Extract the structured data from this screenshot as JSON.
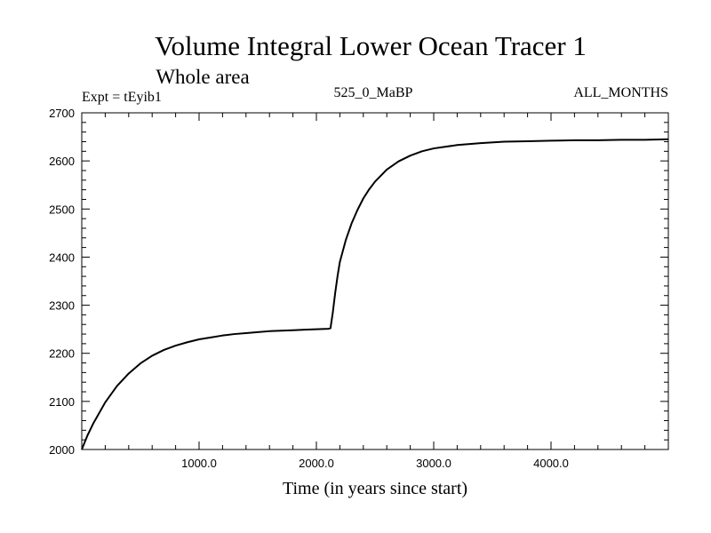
{
  "chart_data": {
    "type": "line",
    "title": "Volume Integral Lower Ocean Tracer 1",
    "subtitle": "Whole area",
    "annotations": {
      "left": "Expt = tEyib1",
      "center": "525_0_MaBP",
      "right": "ALL_MONTHS"
    },
    "xlabel": "Time (in years since start)",
    "ylabel": "",
    "xlim": [
      0,
      5000
    ],
    "ylim": [
      2000,
      2700
    ],
    "x_ticks": [
      {
        "value": 1000,
        "label": "1000.0"
      },
      {
        "value": 2000,
        "label": "2000.0"
      },
      {
        "value": 3000,
        "label": "3000.0"
      },
      {
        "value": 4000,
        "label": "4000.0"
      }
    ],
    "y_ticks": [
      {
        "value": 2000,
        "label": "2000"
      },
      {
        "value": 2100,
        "label": "2100"
      },
      {
        "value": 2200,
        "label": "2200"
      },
      {
        "value": 2300,
        "label": "2300"
      },
      {
        "value": 2400,
        "label": "2400"
      },
      {
        "value": 2500,
        "label": "2500"
      },
      {
        "value": 2600,
        "label": "2600"
      },
      {
        "value": 2700,
        "label": "2700"
      }
    ],
    "series": [
      {
        "name": "Tracer 1",
        "color": "#000000",
        "x": [
          0,
          50,
          100,
          200,
          300,
          400,
          500,
          600,
          700,
          800,
          900,
          1000,
          1100,
          1200,
          1300,
          1400,
          1500,
          1600,
          1700,
          1800,
          1900,
          2000,
          2100,
          2120,
          2140,
          2160,
          2180,
          2200,
          2250,
          2300,
          2350,
          2400,
          2450,
          2500,
          2600,
          2700,
          2800,
          2900,
          3000,
          3200,
          3400,
          3600,
          3800,
          4000,
          4200,
          4400,
          4600,
          4800,
          5000
        ],
        "y": [
          2000,
          2030,
          2055,
          2098,
          2132,
          2158,
          2179,
          2195,
          2207,
          2216,
          2223,
          2229,
          2233,
          2237,
          2240,
          2242,
          2244,
          2246,
          2247,
          2248,
          2249,
          2250,
          2251,
          2252,
          2285,
          2325,
          2360,
          2390,
          2435,
          2470,
          2498,
          2522,
          2541,
          2557,
          2582,
          2599,
          2611,
          2620,
          2626,
          2633,
          2637,
          2640,
          2641,
          2642,
          2643,
          2643,
          2644,
          2644,
          2645
        ]
      }
    ]
  }
}
